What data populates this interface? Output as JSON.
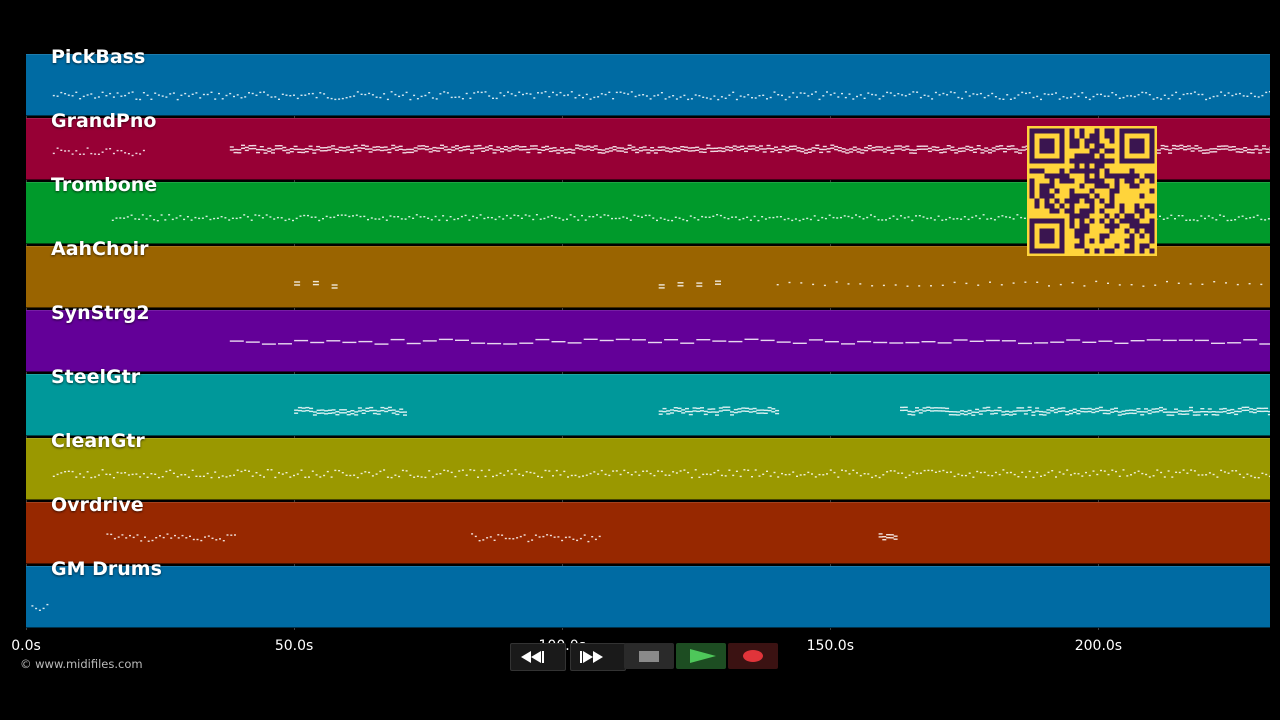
{
  "tracks": [
    {
      "name": "PickBass",
      "color": "#006ba3"
    },
    {
      "name": "GrandPno",
      "color": "#970035"
    },
    {
      "name": "Trombone",
      "color": "#009a2b"
    },
    {
      "name": "AahChoir",
      "color": "#9a6400"
    },
    {
      "name": "SynStrg2",
      "color": "#630098"
    },
    {
      "name": "SteelGtr",
      "color": "#00989a"
    },
    {
      "name": "CleanGtr",
      "color": "#9a9800"
    },
    {
      "name": "Ovrdrive",
      "color": "#972800"
    },
    {
      "name": "GM Drums",
      "color": "#006ba3"
    }
  ],
  "timeline": {
    "duration_seconds": 232,
    "ticks": [
      "0.0s",
      "50.0s",
      "100.0s",
      "150.0s",
      "200.0s"
    ],
    "tick_values": [
      0,
      50,
      100,
      150,
      200
    ]
  },
  "copyright": "© www.midifiles.com",
  "transport": {
    "buttons": [
      {
        "name": "rewind-button",
        "icon": "rewind-icon"
      },
      {
        "name": "fast-forward-button",
        "icon": "fast-forward-icon"
      },
      {
        "name": "stop-button",
        "icon": "stop-icon"
      },
      {
        "name": "play-button",
        "icon": "play-icon"
      },
      {
        "name": "record-button",
        "icon": "record-icon"
      }
    ]
  },
  "overlay": {
    "icon": "qr-code-icon",
    "color": "#ffd43b"
  }
}
